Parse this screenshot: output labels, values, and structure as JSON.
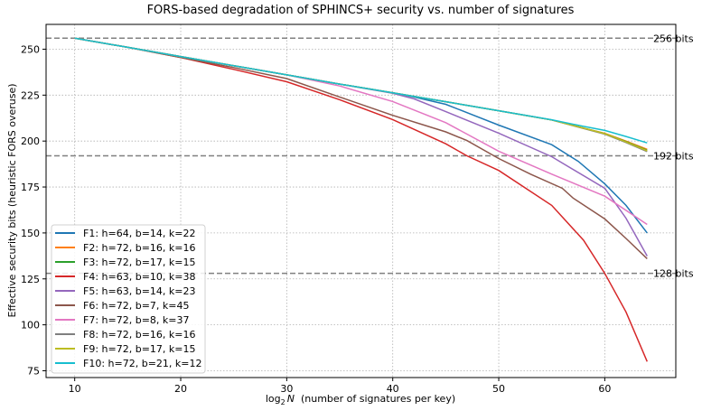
{
  "chart_data": {
    "type": "line",
    "title": "FORS-based degradation of SPHINCS+ security vs. number of signatures",
    "xlabel_prefix": "log",
    "xlabel_sub": "2",
    "xlabel_var": "N",
    "xlabel_rest": "(number of signatures per key)",
    "ylabel": "Effective security bits (heuristic FORS overuse)",
    "xlim": [
      7.3,
      66.7
    ],
    "ylim": [
      71.3,
      263.5
    ],
    "xticks": [
      10,
      20,
      30,
      40,
      50,
      60
    ],
    "yticks": [
      75,
      100,
      125,
      150,
      175,
      200,
      225,
      250
    ],
    "grid": true,
    "legend_position": "lower-left",
    "reference_lines": [
      {
        "y": 256,
        "label": "256 bits"
      },
      {
        "y": 192,
        "label": "192 bits"
      },
      {
        "y": 128,
        "label": "128 bits"
      }
    ],
    "series": [
      {
        "name": "F1: h=64, b=14, k=22",
        "color": "#1f77b4",
        "x": [
          10,
          15,
          20,
          25,
          30,
          35,
          40,
          42,
          45,
          50,
          55,
          57.5,
          60,
          62,
          64
        ],
        "y": [
          256,
          251,
          246,
          241,
          236,
          231,
          226.3,
          224,
          220,
          208.7,
          198,
          189,
          176.7,
          165,
          150
        ]
      },
      {
        "name": "F2: h=72, b=16, k=16",
        "color": "#ff7f0e",
        "x": [
          10,
          15,
          20,
          25,
          30,
          35,
          40,
          45,
          50,
          55,
          58,
          60,
          62,
          64
        ],
        "y": [
          256,
          251,
          246,
          241,
          236,
          231,
          226.3,
          221.4,
          216.5,
          211.5,
          207,
          204.2,
          200,
          195.5
        ]
      },
      {
        "name": "F3: h=72, b=17, k=15",
        "color": "#2ca02c",
        "x": [
          10,
          15,
          20,
          25,
          30,
          35,
          40,
          45,
          50,
          55,
          58,
          60,
          62,
          64
        ],
        "y": [
          256,
          251,
          246,
          241,
          236,
          231,
          226.3,
          221.4,
          216.5,
          211.5,
          207,
          204,
          199.7,
          195
        ]
      },
      {
        "name": "F4: h=63, b=10, k=38",
        "color": "#d62728",
        "x": [
          10,
          15,
          20,
          25,
          30,
          35,
          40,
          45,
          47,
          50,
          55,
          58,
          60,
          62,
          64
        ],
        "y": [
          256,
          251,
          245.5,
          239,
          232.3,
          222.5,
          211.7,
          198.5,
          192,
          184,
          165,
          146,
          128,
          107,
          80
        ]
      },
      {
        "name": "F5: h=63, b=14, k=23",
        "color": "#9467bd",
        "x": [
          10,
          15,
          20,
          25,
          30,
          35,
          40,
          42,
          45,
          50,
          55,
          60,
          62,
          64
        ],
        "y": [
          256,
          251,
          246,
          241,
          236,
          231,
          226,
          223,
          216,
          204.3,
          191.5,
          174.3,
          158,
          137.4
        ]
      },
      {
        "name": "F6: h=72, b=7, k=45",
        "color": "#8c564b",
        "x": [
          10,
          15,
          20,
          25,
          30,
          35,
          40,
          45,
          47,
          50,
          53,
          56,
          57,
          60,
          62,
          64
        ],
        "y": [
          256,
          251,
          245.5,
          240,
          234,
          224,
          214,
          205,
          200.3,
          190.5,
          182,
          174.3,
          169,
          157.6,
          147,
          136
        ]
      },
      {
        "name": "F7: h=72, b=8, k=37",
        "color": "#e377c2",
        "x": [
          10,
          15,
          20,
          25,
          30,
          35,
          40,
          45,
          50,
          55,
          60,
          64
        ],
        "y": [
          256,
          251,
          246,
          241,
          236,
          230,
          221.5,
          210,
          194.5,
          182,
          170,
          154.6
        ]
      },
      {
        "name": "F8: h=72, b=16, k=16",
        "color": "#7f7f7f",
        "x": [
          10,
          15,
          20,
          25,
          30,
          35,
          40,
          45,
          50,
          55,
          58,
          60,
          62,
          64
        ],
        "y": [
          256,
          251,
          246,
          241,
          236,
          231,
          226.3,
          221.4,
          216.5,
          211.5,
          206.8,
          203.8,
          199.2,
          194.3
        ]
      },
      {
        "name": "F9: h=72, b=17, k=15",
        "color": "#bcbd22",
        "x": [
          10,
          15,
          20,
          25,
          30,
          35,
          40,
          45,
          50,
          55,
          58,
          60,
          62,
          64
        ],
        "y": [
          256,
          251,
          246,
          241,
          236,
          231,
          226.3,
          221.4,
          216.5,
          211.5,
          207,
          204,
          199.5,
          194.7
        ]
      },
      {
        "name": "F10: h=72, b=21, k=12",
        "color": "#17becf",
        "x": [
          10,
          15,
          20,
          25,
          30,
          35,
          40,
          45,
          50,
          55,
          58,
          60,
          62,
          64
        ],
        "y": [
          256,
          251,
          246,
          241,
          236,
          231,
          226.3,
          221.4,
          216.5,
          211.6,
          208,
          205.8,
          202.5,
          199
        ]
      }
    ]
  }
}
